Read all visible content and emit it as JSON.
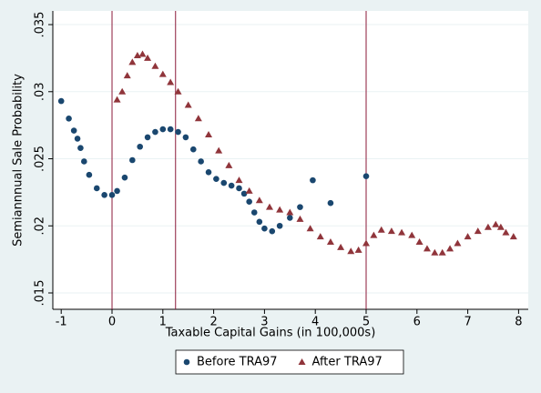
{
  "chart_data": {
    "type": "scatter",
    "xlabel": "Taxable Capital Gains (in 100,000s)",
    "ylabel": "Semiannnual Sale Probability",
    "xlim": [
      -1.165,
      8.19
    ],
    "ylim": [
      0.01378,
      0.03602
    ],
    "xticks": [
      -1,
      0,
      1,
      2,
      3,
      4,
      5,
      6,
      7,
      8
    ],
    "yticks": [
      {
        "value": 0.015,
        "label": ".015"
      },
      {
        "value": 0.02,
        "label": ".02"
      },
      {
        "value": 0.025,
        "label": ".025"
      },
      {
        "value": 0.03,
        "label": ".03"
      },
      {
        "value": 0.035,
        "label": ".035"
      }
    ],
    "grid": true,
    "vlines": [
      0,
      1.25,
      5
    ],
    "vline_color": "#8b1a3a",
    "legend": "bottom",
    "series": [
      {
        "name": "Before TRA97",
        "color": "#1a476f",
        "marker": "circle",
        "x": [
          -1,
          -0.85,
          -0.75,
          -0.68,
          -0.62,
          -0.55,
          -0.45,
          -0.3,
          -0.15,
          0,
          0.1,
          0.25,
          0.4,
          0.55,
          0.7,
          0.85,
          1.0,
          1.15,
          1.3,
          1.45,
          1.6,
          1.75,
          1.9,
          2.05,
          2.2,
          2.35,
          2.5,
          2.6,
          2.7,
          2.8,
          2.9,
          3.0,
          3.15,
          3.3,
          3.5,
          3.7,
          3.95,
          4.3,
          5.0
        ],
        "y": [
          0.0293,
          0.028,
          0.0271,
          0.0265,
          0.0258,
          0.0248,
          0.0238,
          0.0228,
          0.0223,
          0.0223,
          0.0226,
          0.0236,
          0.0249,
          0.0259,
          0.0266,
          0.027,
          0.0272,
          0.0272,
          0.027,
          0.0266,
          0.0257,
          0.0248,
          0.024,
          0.0235,
          0.0232,
          0.023,
          0.0228,
          0.0224,
          0.0218,
          0.021,
          0.0203,
          0.0198,
          0.0196,
          0.02,
          0.0206,
          0.0214,
          0.0234,
          0.0217,
          0.0237
        ]
      },
      {
        "name": "After TRA97",
        "color": "#90353b",
        "marker": "triangle",
        "x": [
          0.1,
          0.2,
          0.3,
          0.4,
          0.5,
          0.6,
          0.7,
          0.85,
          1.0,
          1.15,
          1.3,
          1.5,
          1.7,
          1.9,
          2.1,
          2.3,
          2.5,
          2.7,
          2.9,
          3.1,
          3.3,
          3.5,
          3.7,
          3.9,
          4.1,
          4.3,
          4.5,
          4.7,
          4.85,
          5.0,
          5.15,
          5.3,
          5.5,
          5.7,
          5.9,
          6.05,
          6.2,
          6.35,
          6.5,
          6.65,
          6.8,
          7.0,
          7.2,
          7.4,
          7.55,
          7.65,
          7.75,
          7.9
        ],
        "y": [
          0.0294,
          0.03,
          0.0312,
          0.0322,
          0.0327,
          0.0328,
          0.0325,
          0.0319,
          0.0313,
          0.0307,
          0.03,
          0.029,
          0.028,
          0.0268,
          0.0256,
          0.0245,
          0.0234,
          0.0226,
          0.0219,
          0.0214,
          0.0212,
          0.021,
          0.0205,
          0.0198,
          0.0192,
          0.0188,
          0.0184,
          0.0181,
          0.0182,
          0.0187,
          0.0193,
          0.0197,
          0.0196,
          0.0195,
          0.0193,
          0.0188,
          0.0183,
          0.018,
          0.018,
          0.0183,
          0.0187,
          0.0192,
          0.0196,
          0.0199,
          0.0201,
          0.0199,
          0.0195,
          0.0192
        ]
      }
    ]
  }
}
